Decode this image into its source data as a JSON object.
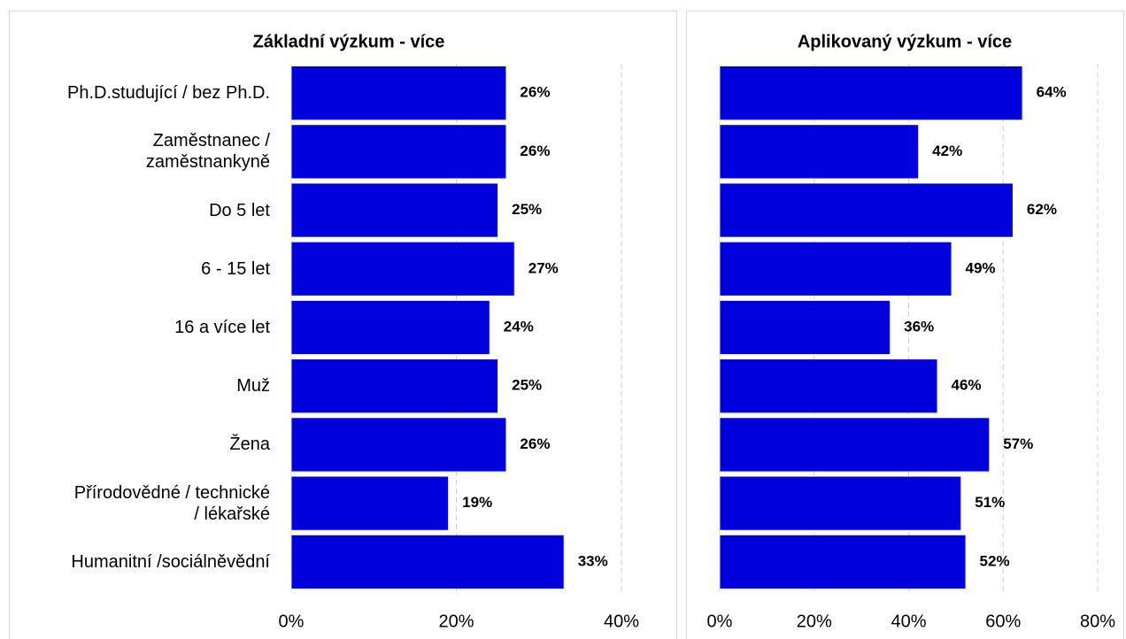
{
  "chart_data": [
    {
      "type": "bar",
      "orientation": "horizontal",
      "title": "Základní výzkum - více",
      "categories": [
        "Ph.D.studující / bez Ph.D.",
        "Zaměstnanec / zaměstnankyně",
        "Do 5 let",
        "6 - 15 let",
        "16 a více let",
        "Muž",
        "Žena",
        "Přírodovědné / technické / lékařské",
        "Humanitní /sociálněvědní"
      ],
      "values": [
        26,
        26,
        25,
        27,
        24,
        25,
        26,
        19,
        33
      ],
      "value_labels": [
        "26%",
        "26%",
        "25%",
        "27%",
        "24%",
        "25%",
        "26%",
        "19%",
        "33%"
      ],
      "color": "#0000dd",
      "xlim": [
        0,
        40
      ],
      "xticks": [
        {
          "value": 0,
          "label": "0%"
        },
        {
          "value": 20,
          "label": "20%"
        },
        {
          "value": 40,
          "label": "40%"
        }
      ],
      "grid": true
    },
    {
      "type": "bar",
      "orientation": "horizontal",
      "title": "Aplikovaný výzkum - více",
      "values": [
        64,
        42,
        62,
        49,
        36,
        46,
        57,
        51,
        52
      ],
      "value_labels": [
        "64%",
        "42%",
        "62%",
        "49%",
        "36%",
        "46%",
        "57%",
        "51%",
        "52%"
      ],
      "color": "#0000dd",
      "xlim": [
        0,
        80
      ],
      "xticks": [
        {
          "value": 0,
          "label": "0%"
        },
        {
          "value": 20,
          "label": "20%"
        },
        {
          "value": 40,
          "label": "40%"
        },
        {
          "value": 60,
          "label": "60%"
        },
        {
          "value": 80,
          "label": "80%"
        }
      ],
      "grid": true
    }
  ]
}
